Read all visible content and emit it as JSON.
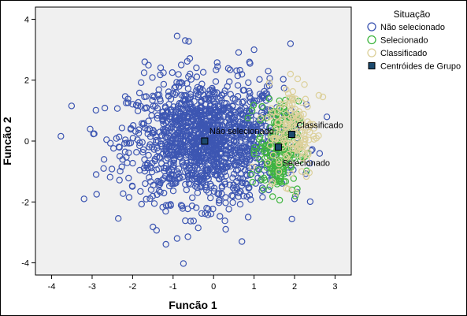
{
  "chart_data": {
    "type": "scatter",
    "xlabel": "Funcão 1",
    "ylabel": "Funcão 2",
    "xlim": [
      -4.4,
      3.4
    ],
    "ylim": [
      -4.4,
      4.4
    ],
    "x_ticks": [
      -4,
      -3,
      -2,
      -1,
      0,
      1,
      2,
      3
    ],
    "y_ticks": [
      -4,
      -2,
      0,
      2,
      4
    ],
    "grid": false,
    "legend_position": "right",
    "legend_title": "Situação",
    "series": [
      {
        "name": "Não selecionado",
        "color": "#3d56b2",
        "marker": "open-circle",
        "cluster": {
          "count": 1400,
          "x_mean": -0.2,
          "x_sd": 0.95,
          "y_mean": 0.0,
          "y_sd": 1.0
        },
        "points": [
          {
            "x": -0.9,
            "y": 3.45
          },
          {
            "x": 1.9,
            "y": 3.2
          },
          {
            "x": -0.7,
            "y": 3.3
          },
          {
            "x": -3.2,
            "y": -1.9
          },
          {
            "x": -0.9,
            "y": -3.2
          },
          {
            "x": 0.7,
            "y": -3.3
          },
          {
            "x": 0.3,
            "y": -2.9
          },
          {
            "x": 0.9,
            "y": 2.55
          },
          {
            "x": -1.7,
            "y": 2.6
          },
          {
            "x": 1.0,
            "y": 3.0
          },
          {
            "x": -2.9,
            "y": -1.1
          },
          {
            "x": 2.0,
            "y": -1.9
          }
        ]
      },
      {
        "name": "Selecionado",
        "color": "#3fb53f",
        "marker": "open-circle",
        "cluster": {
          "count": 230,
          "x_mean": 1.6,
          "x_sd": 0.25,
          "y_mean": -0.2,
          "y_sd": 0.75
        },
        "points": []
      },
      {
        "name": "Classificado",
        "color": "#dcd09a",
        "marker": "open-circle",
        "cluster": {
          "count": 150,
          "x_mean": 1.95,
          "x_sd": 0.3,
          "y_mean": 0.35,
          "y_sd": 0.8
        },
        "points": [
          {
            "x": 1.9,
            "y": 2.2
          },
          {
            "x": 2.6,
            "y": 1.5
          },
          {
            "x": 2.7,
            "y": 1.45
          }
        ]
      }
    ],
    "centroids": {
      "name": "Centróides de Grupo",
      "color": "#1d4a6e",
      "marker": "square",
      "points": [
        {
          "label": "Não selecionado",
          "x": -0.22,
          "y": 0.0
        },
        {
          "label": "Selecionado",
          "x": 1.6,
          "y": -0.2
        },
        {
          "label": "Classificado",
          "x": 1.93,
          "y": 0.22
        }
      ]
    }
  }
}
